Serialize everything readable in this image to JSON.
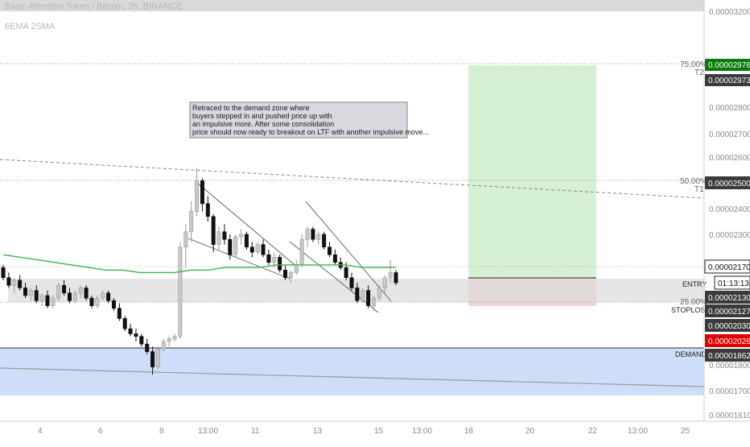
{
  "header": {
    "symbol_line": "Basic Attention Token / Bitcoin, 2h, BINANCE",
    "indicators": "6EMA 2SMA"
  },
  "colors": {
    "bull_candle": "#c8c8c8",
    "bear_candle": "#111111",
    "ema_line": "#3fb34f",
    "target_zone": "#d6f0d4",
    "stop_zone": "#f2d6d6",
    "entry_band": "#dcdcdc",
    "demand_zone": "#cfdef8",
    "tag_green": "#0a7a0a",
    "tag_red": "#e00000",
    "tag_dark": "#3a3a3a",
    "tag_gray": "#888888"
  },
  "annotation": {
    "lines": [
      "Retraced to the demand zone where",
      "buyers stepped in and pushed price up with",
      "an impulsive more. After some consolidation",
      "price should   now ready to breakout on LTF with another impulsive move..."
    ]
  },
  "price_axis": {
    "ticks": [
      "0.00003200",
      "0.00002800",
      "0.00002700",
      "0.00002600",
      "0.00002400",
      "0.00002300",
      "0.00001800",
      "0.00001700",
      "0.00001610"
    ]
  },
  "price_tags": [
    {
      "label": "0.00002976",
      "kind": "green"
    },
    {
      "label": "0.00002973",
      "kind": "dark"
    },
    {
      "label": "0.00002500",
      "kind": "dark"
    },
    {
      "label": "0.00002170",
      "kind": "outline"
    },
    {
      "label": "01:13:13",
      "kind": "outline"
    },
    {
      "label": "0.00002130",
      "kind": "dark"
    },
    {
      "label": "0.00002127",
      "kind": "dark"
    },
    {
      "label": "0.00002030",
      "kind": "dark"
    },
    {
      "label": "0.00002026",
      "kind": "red"
    },
    {
      "label": "0.00001862",
      "kind": "dark"
    }
  ],
  "fib_labels": [
    {
      "label": "75.00%",
      "sub": "T2"
    },
    {
      "label": "50.00%",
      "sub": "T1"
    },
    {
      "label": "25.00%",
      "sub": ""
    }
  ],
  "zone_labels": {
    "entry": "ENTRY",
    "stoploss": "STOPLOSS",
    "demand": "DEMAND"
  },
  "time_axis": {
    "labels": [
      "4",
      "6",
      "8",
      "13:00",
      "11",
      "13",
      "15",
      "13:00",
      "18",
      "20",
      "22",
      "13:00",
      "25"
    ]
  },
  "chart_data": {
    "type": "candlestick",
    "title": "Basic Attention Token / Bitcoin, 2h, BINANCE",
    "indicators": [
      "6EMA",
      "2SMA"
    ],
    "ylim": [
      1.61e-05,
      3.22e-05
    ],
    "levels": {
      "target_2": 2.976e-05,
      "target_1": 2.5e-05,
      "entry": 2.13e-05,
      "stoploss": 2.026e-05,
      "demand_top": 1.862e-05,
      "demand_bottom": 1.69e-05
    },
    "candles": [
      [
        2.2e-05,
        2.21e-05,
        2.15e-05,
        2.16e-05
      ],
      [
        2.16e-05,
        2.18e-05,
        2.12e-05,
        2.13e-05
      ],
      [
        2.13e-05,
        2.16e-05,
        2.1e-05,
        2.15e-05
      ],
      [
        2.15e-05,
        2.17e-05,
        2.11e-05,
        2.12e-05
      ],
      [
        2.12e-05,
        2.14e-05,
        2.08e-05,
        2.09e-05
      ],
      [
        2.09e-05,
        2.12e-05,
        2.07e-05,
        2.11e-05
      ],
      [
        2.11e-05,
        2.13e-05,
        2.06e-05,
        2.07e-05
      ],
      [
        2.07e-05,
        2.1e-05,
        2.05e-05,
        2.09e-05
      ],
      [
        2.09e-05,
        2.11e-05,
        2.04e-05,
        2.05e-05
      ],
      [
        2.05e-05,
        2.09e-05,
        2.04e-05,
        2.08e-05
      ],
      [
        2.08e-05,
        2.14e-05,
        2.07e-05,
        2.13e-05
      ],
      [
        2.13e-05,
        2.15e-05,
        2.09e-05,
        2.1e-05
      ],
      [
        2.1e-05,
        2.12e-05,
        2.06e-05,
        2.07e-05
      ],
      [
        2.07e-05,
        2.11e-05,
        2.06e-05,
        2.1e-05
      ],
      [
        2.1e-05,
        2.13e-05,
        2.08e-05,
        2.12e-05
      ],
      [
        2.12e-05,
        2.13e-05,
        2.07e-05,
        2.08e-05
      ],
      [
        2.08e-05,
        2.09e-05,
        2.04e-05,
        2.05e-05
      ],
      [
        2.05e-05,
        2.09e-05,
        2.04e-05,
        2.08e-05
      ],
      [
        2.08e-05,
        2.11e-05,
        2.07e-05,
        2.1e-05
      ],
      [
        2.1e-05,
        2.11e-05,
        2.06e-05,
        2.07e-05
      ],
      [
        2.07e-05,
        2.08e-05,
        2.03e-05,
        2.04e-05
      ],
      [
        2.04e-05,
        2.06e-05,
        1.99e-05,
        2e-05
      ],
      [
        2e-05,
        2.01e-05,
        1.95e-05,
        1.96e-05
      ],
      [
        1.96e-05,
        1.98e-05,
        1.93e-05,
        1.94e-05
      ],
      [
        1.94e-05,
        1.96e-05,
        1.91e-05,
        1.93e-05
      ],
      [
        1.93e-05,
        1.94e-05,
        1.89e-05,
        1.9e-05
      ],
      [
        1.9e-05,
        1.92e-05,
        1.86e-05,
        1.87e-05
      ],
      [
        1.87e-05,
        1.89e-05,
        1.78e-05,
        1.81e-05
      ],
      [
        1.81e-05,
        1.89e-05,
        1.8e-05,
        1.88e-05
      ],
      [
        1.88e-05,
        1.92e-05,
        1.87e-05,
        1.91e-05
      ],
      [
        1.91e-05,
        1.93e-05,
        1.89e-05,
        1.92e-05
      ],
      [
        1.92e-05,
        1.94e-05,
        1.91e-05,
        1.93e-05
      ],
      [
        1.93e-05,
        2.3e-05,
        1.92e-05,
        2.28e-05
      ],
      [
        2.28e-05,
        2.37e-05,
        2.2e-05,
        2.34e-05
      ],
      [
        2.34e-05,
        2.46e-05,
        2.3e-05,
        2.42e-05
      ],
      [
        2.42e-05,
        2.59e-05,
        2.4e-05,
        2.54e-05
      ],
      [
        2.54e-05,
        2.55e-05,
        2.42e-05,
        2.45e-05
      ],
      [
        2.45e-05,
        2.48e-05,
        2.38e-05,
        2.4e-05
      ],
      [
        2.4e-05,
        2.41e-05,
        2.26e-05,
        2.29e-05
      ],
      [
        2.29e-05,
        2.36e-05,
        2.27e-05,
        2.34e-05
      ],
      [
        2.34e-05,
        2.37e-05,
        2.29e-05,
        2.31e-05
      ],
      [
        2.31e-05,
        2.33e-05,
        2.23e-05,
        2.25e-05
      ],
      [
        2.25e-05,
        2.33e-05,
        2.24e-05,
        2.32e-05
      ],
      [
        2.32e-05,
        2.35e-05,
        2.29e-05,
        2.33e-05
      ],
      [
        2.33e-05,
        2.34e-05,
        2.27e-05,
        2.28e-05
      ],
      [
        2.28e-05,
        2.3e-05,
        2.24e-05,
        2.26e-05
      ],
      [
        2.26e-05,
        2.3e-05,
        2.25e-05,
        2.29e-05
      ],
      [
        2.29e-05,
        2.31e-05,
        2.24e-05,
        2.25e-05
      ],
      [
        2.25e-05,
        2.27e-05,
        2.21e-05,
        2.22e-05
      ],
      [
        2.22e-05,
        2.26e-05,
        2.2e-05,
        2.24e-05
      ],
      [
        2.24e-05,
        2.25e-05,
        2.18e-05,
        2.19e-05
      ],
      [
        2.19e-05,
        2.21e-05,
        2.15e-05,
        2.16e-05
      ],
      [
        2.16e-05,
        2.19e-05,
        2.14e-05,
        2.18e-05
      ],
      [
        2.18e-05,
        2.23e-05,
        2.17e-05,
        2.21e-05
      ],
      [
        2.21e-05,
        2.33e-05,
        2.2e-05,
        2.31e-05
      ],
      [
        2.31e-05,
        2.36e-05,
        2.28e-05,
        2.35e-05
      ],
      [
        2.35e-05,
        2.36e-05,
        2.3e-05,
        2.31e-05
      ],
      [
        2.31e-05,
        2.34e-05,
        2.29e-05,
        2.33e-05
      ],
      [
        2.33e-05,
        2.34e-05,
        2.27e-05,
        2.28e-05
      ],
      [
        2.28e-05,
        2.3e-05,
        2.24e-05,
        2.25e-05
      ],
      [
        2.25e-05,
        2.27e-05,
        2.21e-05,
        2.22e-05
      ],
      [
        2.22e-05,
        2.24e-05,
        2.19e-05,
        2.2e-05
      ],
      [
        2.2e-05,
        2.22e-05,
        2.15e-05,
        2.16e-05
      ],
      [
        2.16e-05,
        2.18e-05,
        2.11e-05,
        2.12e-05
      ],
      [
        2.12e-05,
        2.14e-05,
        2.06e-05,
        2.07e-05
      ],
      [
        2.07e-05,
        2.12e-05,
        2.06e-05,
        2.11e-05
      ],
      [
        2.11e-05,
        2.13e-05,
        2.04e-05,
        2.05e-05
      ],
      [
        2.05e-05,
        2.09e-05,
        2.03e-05,
        2.08e-05
      ],
      [
        2.08e-05,
        2.13e-05,
        2.07e-05,
        2.12e-05
      ],
      [
        2.12e-05,
        2.17e-05,
        2.1e-05,
        2.16e-05
      ],
      [
        2.16e-05,
        2.23e-05,
        2.14e-05,
        2.18e-05
      ],
      [
        2.18e-05,
        2.19e-05,
        2.13e-05,
        2.14e-05
      ]
    ],
    "ema": [
      2.25e-05,
      2.24e-05,
      2.23e-05,
      2.22e-05,
      2.21e-05,
      2.2e-05,
      2.19e-05,
      2.19e-05,
      2.18e-05,
      2.18e-05,
      2.18e-05,
      2.19e-05,
      2.19e-05,
      2.2e-05,
      2.2e-05,
      2.2e-05,
      2.21e-05,
      2.21e-05,
      2.21e-05,
      2.21e-05,
      2.21e-05,
      2.2e-05,
      2.2e-05,
      2.2e-05
    ]
  }
}
